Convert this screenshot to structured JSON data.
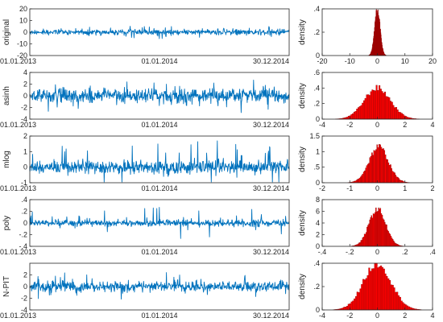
{
  "colors": {
    "series": "#0072BD",
    "hist": "#FF0000",
    "hist_edge": "#7a0000",
    "axis": "#262626"
  },
  "chart_data": [
    {
      "type": "line",
      "panel": "timeseries",
      "ylabel": "original",
      "ylim": [
        -20,
        20
      ],
      "yticks": [
        -20,
        -10,
        0,
        10,
        20
      ],
      "xticks": [
        "01.01.2013",
        "01.01.2014",
        "30.12.2014"
      ],
      "amplitude": 2.5,
      "spike_scale": 4.0
    },
    {
      "type": "bar",
      "panel": "histogram",
      "ylabel": "density",
      "xlim": [
        -20,
        20
      ],
      "xticks": [
        -20,
        -10,
        0,
        10,
        20
      ],
      "ylim": [
        0,
        0.4
      ],
      "yticks": [
        0,
        0.2,
        0.4
      ],
      "center": 0,
      "sd": 1.0,
      "peak": 0.4
    },
    {
      "type": "line",
      "panel": "timeseries",
      "ylabel": "asinh",
      "ylim": [
        -4,
        4
      ],
      "yticks": [
        -4,
        -2,
        0,
        2,
        4
      ],
      "xticks": [
        "01.01.2013",
        "01.01.2014",
        "30.12.2014"
      ],
      "amplitude": 1.4,
      "spike_scale": 1.6
    },
    {
      "type": "bar",
      "panel": "histogram",
      "ylabel": "density",
      "xlim": [
        -4,
        4
      ],
      "xticks": [
        -4,
        -2,
        0,
        2,
        4
      ],
      "ylim": [
        0,
        0.6
      ],
      "yticks": [
        0,
        0.2,
        0.4,
        0.6
      ],
      "center": 0,
      "sd": 0.95,
      "peak": 0.4
    },
    {
      "type": "line",
      "panel": "timeseries",
      "ylabel": "mlog",
      "ylim": [
        -1,
        2
      ],
      "yticks": [
        -1,
        0,
        1,
        2
      ],
      "xticks": [
        "01.01.2013",
        "01.01.2014",
        "30.12.2014"
      ],
      "amplitude": 0.45,
      "spike_scale": 1.1
    },
    {
      "type": "bar",
      "panel": "histogram",
      "ylabel": "density",
      "xlim": [
        -2,
        2
      ],
      "xticks": [
        -2,
        -1,
        0,
        1,
        2
      ],
      "ylim": [
        0,
        1.5
      ],
      "yticks": [
        0,
        0.5,
        1,
        1.5
      ],
      "center": 0.05,
      "sd": 0.35,
      "peak": 1.15
    },
    {
      "type": "line",
      "panel": "timeseries",
      "ylabel": "poly",
      "ylim": [
        -0.4,
        0.4
      ],
      "yticks": [
        -0.4,
        -0.2,
        0,
        0.2,
        0.4
      ],
      "xticks": [
        "01.01.2013",
        "01.01.2014",
        "30.12.2014"
      ],
      "amplitude": 0.06,
      "spike_scale": 0.2
    },
    {
      "type": "bar",
      "panel": "histogram",
      "ylabel": "density",
      "xlim": [
        -0.4,
        0.4
      ],
      "xticks": [
        -0.4,
        -0.2,
        0,
        0.2,
        0.4
      ],
      "ylim": [
        0,
        8
      ],
      "yticks": [
        0,
        2,
        4,
        6,
        8
      ],
      "center": 0.0,
      "sd": 0.06,
      "peak": 6.4
    },
    {
      "type": "line",
      "panel": "timeseries",
      "ylabel": "N-PIT",
      "ylim": [
        -4,
        4
      ],
      "yticks": [
        -4,
        -2,
        0,
        2
      ],
      "xticks": [
        "01.01.2013",
        "01.01.2014",
        "30.12.2014"
      ],
      "amplitude": 1.0,
      "spike_scale": 1.6
    },
    {
      "type": "bar",
      "panel": "histogram",
      "ylabel": "density",
      "xlim": [
        -4,
        4
      ],
      "xticks": [
        -4,
        -2,
        0,
        2,
        4
      ],
      "ylim": [
        0,
        0.4
      ],
      "yticks": [
        0,
        0.2,
        0.4
      ],
      "center": 0.0,
      "sd": 1.0,
      "peak": 0.4
    }
  ]
}
